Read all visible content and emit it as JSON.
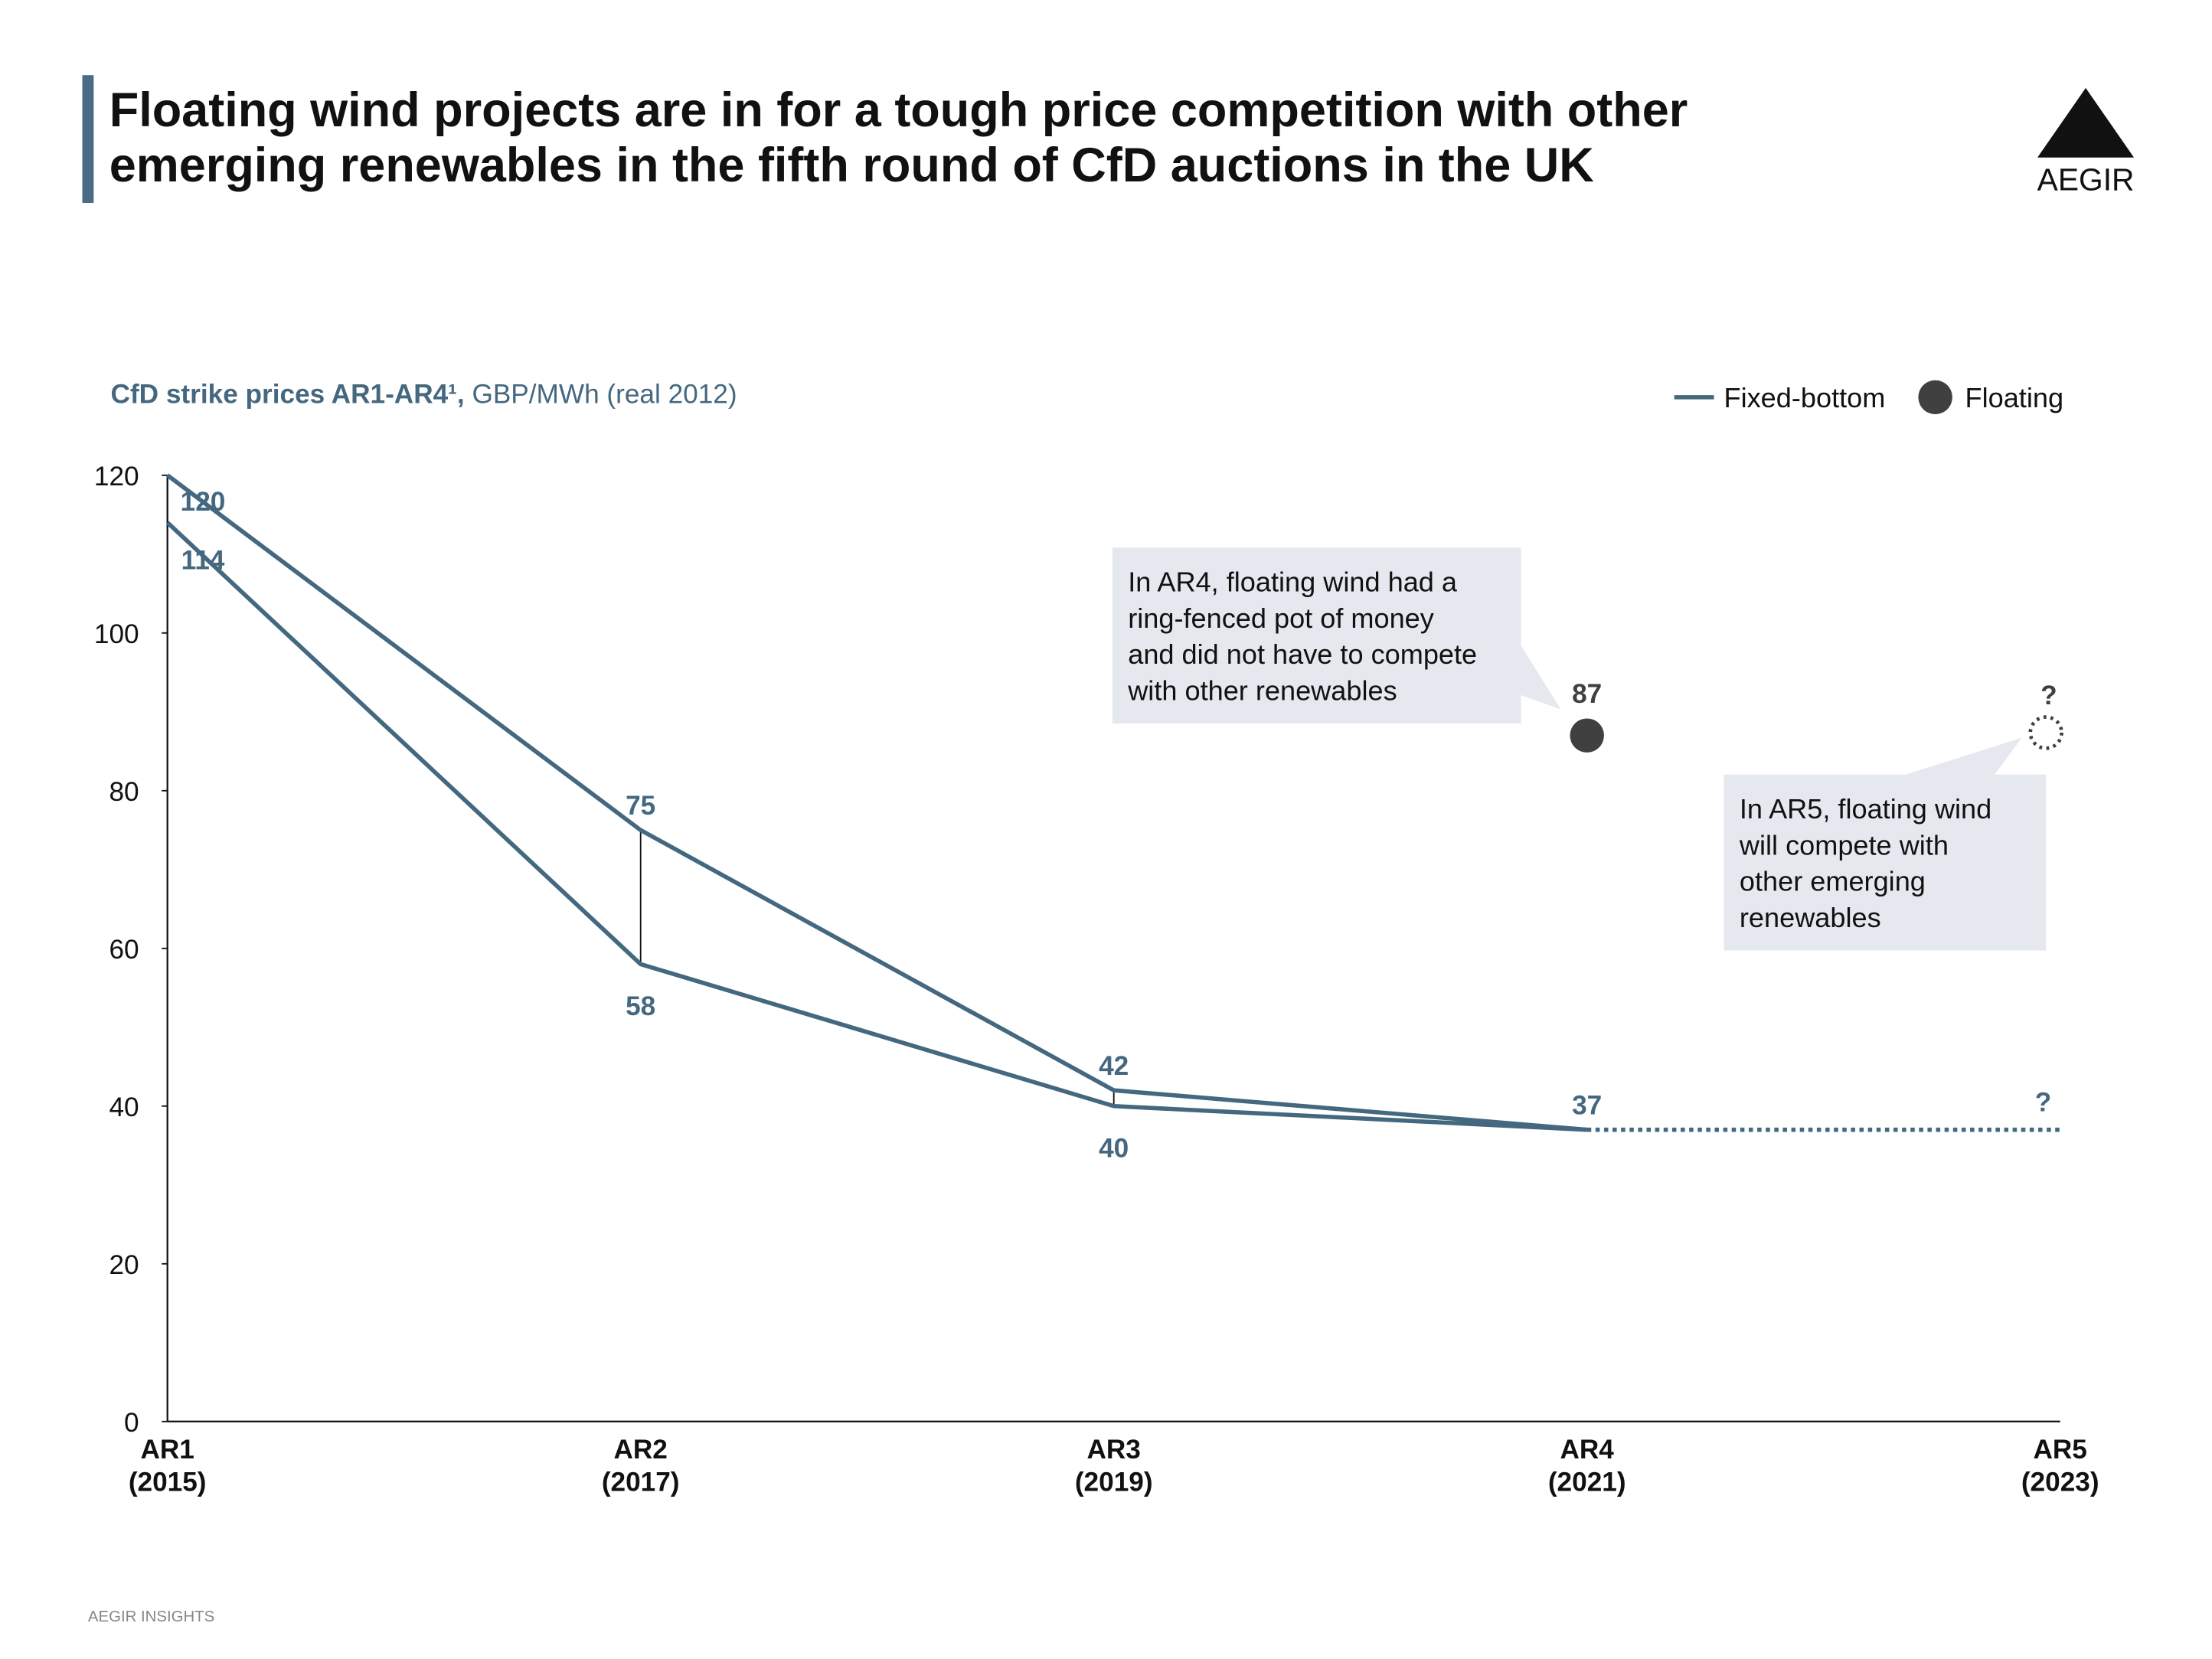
{
  "chart_data": {
    "type": "line",
    "title": [
      "Floating wind projects are in for a tough price competition with other",
      "emerging renewables in the fifth round of CfD auctions in the UK"
    ],
    "subtitle_bold": "CfD strike prices AR1-AR4¹,",
    "subtitle": "GBP/MWh (real 2012)",
    "logo": "AEGIR",
    "source": "AEGIR INSIGHTS",
    "categories": [
      [
        "AR1",
        "(2015)"
      ],
      [
        "AR2",
        "(2017)"
      ],
      [
        "AR3",
        "(2019)"
      ],
      [
        "AR4",
        "(2021)"
      ],
      [
        "AR5",
        "(2023)"
      ]
    ],
    "series": [
      {
        "name": "Fixed-bottom",
        "color": "#44687f",
        "values": [
          120,
          75,
          42,
          37,
          null
        ],
        "low_values": [
          114,
          58,
          40,
          37,
          null
        ]
      },
      {
        "name": "Floating",
        "color": "#404040",
        "values": [
          null,
          null,
          null,
          87,
          null
        ]
      }
    ],
    "ar5_label": "?",
    "ylim": [
      0,
      120
    ],
    "yticks": [
      0,
      20,
      40,
      60,
      80,
      100,
      120
    ],
    "annotations": [
      {
        "lines": [
          "In AR4, floating wind had a",
          "ring-fenced pot of money",
          "and did not have to compete",
          "with other renewables"
        ]
      },
      {
        "lines": [
          "In AR5, floating wind",
          "will compete with",
          "other emerging",
          "renewables"
        ]
      }
    ],
    "legend": "top-right"
  }
}
